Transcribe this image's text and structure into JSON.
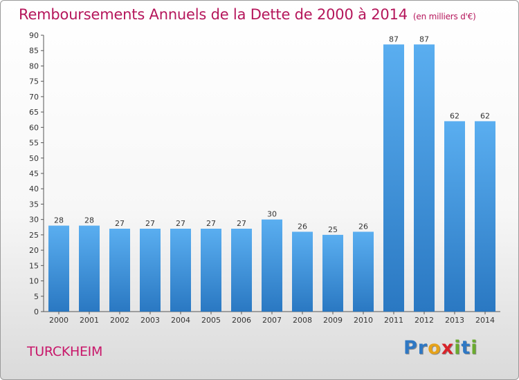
{
  "chart_data": {
    "type": "bar",
    "title": "Remboursements Annuels de la Dette de 2000 à 2014",
    "unit": "(en milliers d'€)",
    "categories": [
      "2000",
      "2001",
      "2002",
      "2003",
      "2004",
      "2005",
      "2006",
      "2007",
      "2008",
      "2009",
      "2010",
      "2011",
      "2012",
      "2013",
      "2014"
    ],
    "values": [
      28,
      28,
      27,
      27,
      27,
      27,
      27,
      30,
      26,
      25,
      26,
      87,
      87,
      62,
      62
    ],
    "ylim": [
      0,
      90
    ],
    "yticks": [
      0,
      5,
      10,
      15,
      20,
      25,
      30,
      35,
      40,
      45,
      50,
      55,
      60,
      65,
      70,
      75,
      80,
      85,
      90
    ],
    "grid": false,
    "xlabel": "",
    "ylabel": "",
    "bar_color": "#3a8fd8"
  },
  "footer": {
    "commune": "TURCKHEIM",
    "logo_letters": [
      {
        "ch": "P",
        "color": "#2f78c4"
      },
      {
        "ch": "r",
        "color": "#2f78c4"
      },
      {
        "ch": "o",
        "color": "#e6a21a"
      },
      {
        "ch": "x",
        "color": "#d8232a"
      },
      {
        "ch": "i",
        "color": "#6aab2e"
      },
      {
        "ch": "t",
        "color": "#2f78c4"
      },
      {
        "ch": "i",
        "color": "#6aab2e"
      }
    ]
  }
}
